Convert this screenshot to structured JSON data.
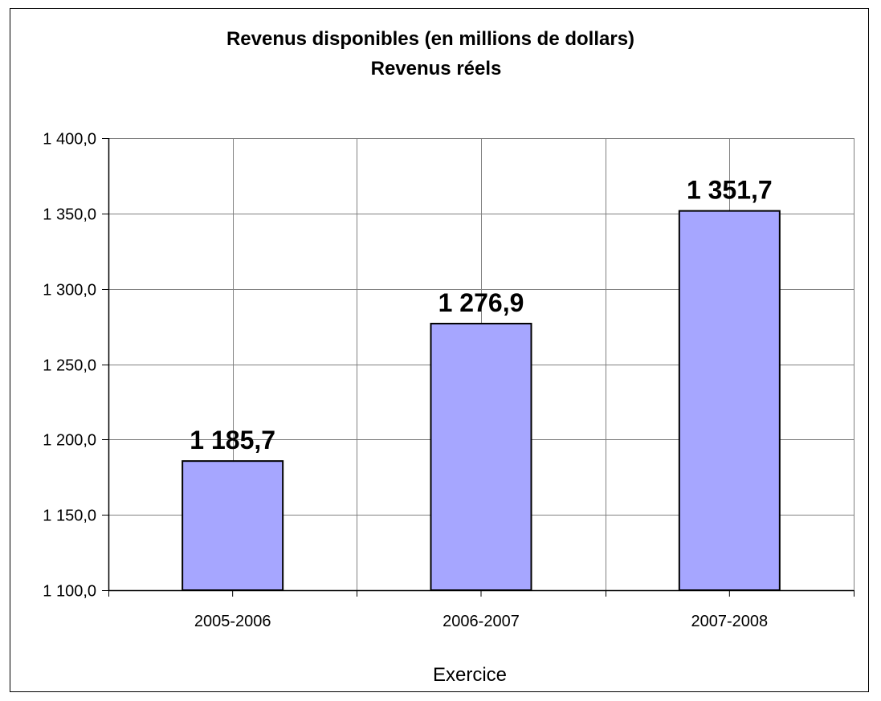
{
  "chart_data": {
    "type": "bar",
    "title": "Revenus disponibles (en millions de dollars)",
    "subtitle": "Revenus réels",
    "xlabel": "Exercice",
    "ylabel": "",
    "categories": [
      "2005-2006",
      "2006-2007",
      "2007-2008"
    ],
    "values": [
      1185.7,
      1276.9,
      1351.7
    ],
    "data_labels": [
      "1 185,7",
      "1 276,9",
      "1 351,7"
    ],
    "ylim": [
      1100,
      1400
    ],
    "yticks": [
      1100,
      1150,
      1200,
      1250,
      1300,
      1350,
      1400
    ],
    "ytick_labels": [
      "1 100,0",
      "1 150,0",
      "1 200,0",
      "1 250,0",
      "1 300,0",
      "1 350,0",
      "1 400,0"
    ],
    "grid": true,
    "legend": "none",
    "colors": {
      "bar": "#A6A6FF",
      "grid": "#808080",
      "border": "#000000"
    }
  }
}
